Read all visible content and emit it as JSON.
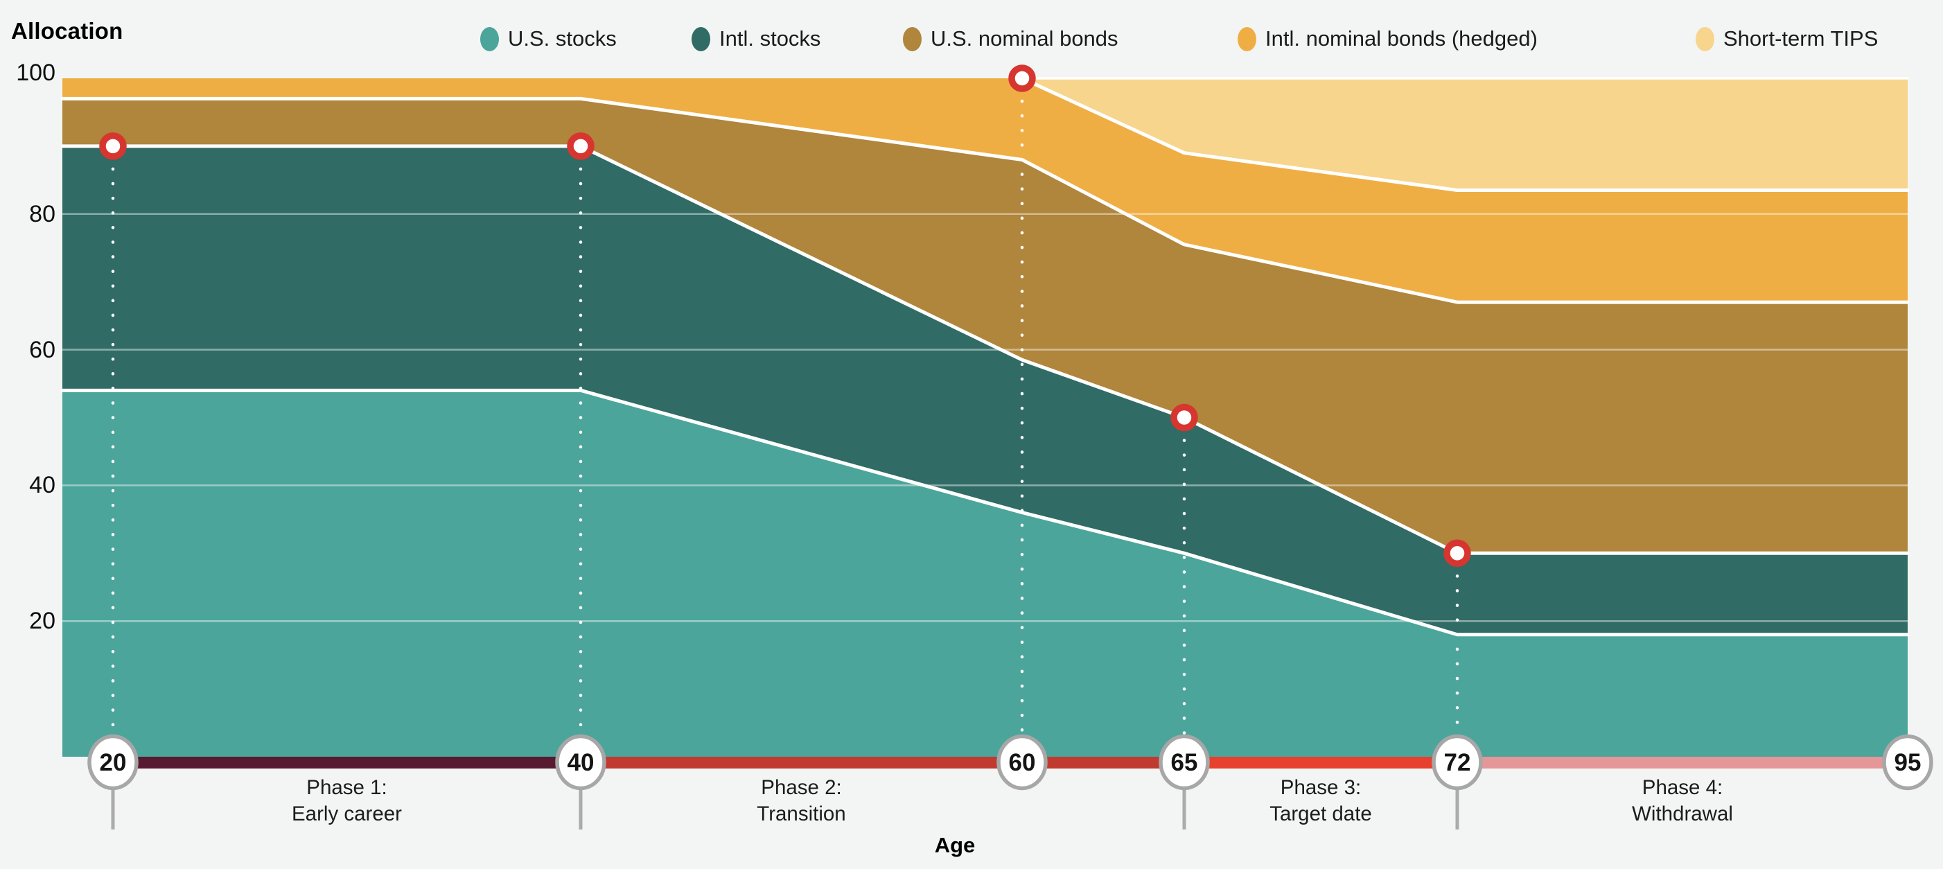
{
  "title": "Allocation",
  "background": "#F3F5F4",
  "legend": {
    "items": [
      {
        "label": "U.S. stocks",
        "color": "#4BA59B"
      },
      {
        "label": "Intl. stocks",
        "color": "#306B65"
      },
      {
        "label": "U.S. nominal bonds",
        "color": "#B0853C"
      },
      {
        "label": "Intl. nominal bonds (hedged)",
        "color": "#EFAE44"
      },
      {
        "label": "Short-term TIPS",
        "color": "#F7D58D"
      }
    ]
  },
  "chart_data": {
    "type": "area",
    "stacked": true,
    "title": "Allocation",
    "xlabel": "Age",
    "ylabel": "Allocation",
    "x": [
      20,
      40,
      60,
      65,
      72,
      95
    ],
    "ylim": [
      0,
      100
    ],
    "y_ticks": [
      20,
      40,
      60,
      80,
      100
    ],
    "grid": "horizontal",
    "legend_position": "top",
    "series": [
      {
        "name": "U.S. stocks",
        "color": "#4BA59B",
        "values": [
          54,
          54,
          36,
          30,
          18,
          18
        ]
      },
      {
        "name": "Intl. stocks",
        "color": "#306B65",
        "values": [
          36,
          36,
          22.5,
          20,
          12,
          12
        ]
      },
      {
        "name": "U.S. nominal bonds",
        "color": "#B0853C",
        "values": [
          7,
          7,
          29.5,
          25.5,
          37,
          37
        ]
      },
      {
        "name": "Intl. nominal bonds (hedged)",
        "color": "#EFAE44",
        "values": [
          3,
          3,
          12,
          13.5,
          16.5,
          16.5
        ]
      },
      {
        "name": "Short-term TIPS",
        "color": "#F7D58D",
        "values": [
          0,
          0,
          0,
          11,
          16.5,
          16.5
        ]
      }
    ],
    "markers": [
      {
        "age": 20,
        "value": 90
      },
      {
        "age": 40,
        "value": 90
      },
      {
        "age": 60,
        "value": 100
      },
      {
        "age": 65,
        "value": 50
      },
      {
        "age": 72,
        "value": 30
      }
    ],
    "marker_color": "#D6362F",
    "separator_color": "#FFFFFF"
  },
  "x_axis": {
    "title": "Age",
    "tick_badges": [
      "20",
      "40",
      "60",
      "65",
      "72",
      "95"
    ],
    "badge_border_color": "#A7A7A7",
    "stem_ages": [
      20,
      40,
      65,
      72
    ]
  },
  "phases": [
    {
      "line1": "Phase 1:",
      "line2": "Early career",
      "from": 20,
      "to": 40,
      "bar_color": "#571A30",
      "label_between": [
        20,
        40
      ]
    },
    {
      "line1": "Phase 2:",
      "line2": "Transition",
      "from": 40,
      "to": 65,
      "bar_color": "#C03A30",
      "label_between": [
        40,
        60
      ]
    },
    {
      "line1": "Phase 3:",
      "line2": "Target date",
      "from": 65,
      "to": 72,
      "bar_color": "#E8402F",
      "label_between": [
        65,
        72
      ]
    },
    {
      "line1": "Phase 4:",
      "line2": "Withdrawal",
      "from": 72,
      "to": 95,
      "bar_color": "#E49699",
      "label_between": [
        72,
        95
      ]
    }
  ]
}
